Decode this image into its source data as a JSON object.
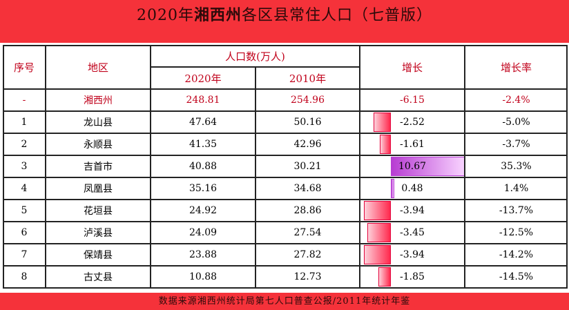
{
  "title": {
    "pre": "2020年",
    "bold": "湘西州",
    "post": "各区县常住人口（七普版）"
  },
  "headers": {
    "index": "序号",
    "region": "地区",
    "population": "人口数(万人)",
    "y2020": "2020年",
    "y2010": "2010年",
    "growth": "增长",
    "rate": "增长率"
  },
  "rows": [
    {
      "index": "-",
      "region": "湘西州",
      "y2020": "248.81",
      "y2010": "254.96",
      "growth": "-6.15",
      "rate": "-2.4%",
      "highlight": true
    },
    {
      "index": "1",
      "region": "龙山县",
      "y2020": "47.64",
      "y2010": "50.16",
      "growth": "-2.52",
      "rate": "-5.0%"
    },
    {
      "index": "2",
      "region": "永顺县",
      "y2020": "41.35",
      "y2010": "42.96",
      "growth": "-1.61",
      "rate": "-3.7%"
    },
    {
      "index": "3",
      "region": "吉首市",
      "y2020": "40.88",
      "y2010": "30.21",
      "growth": "10.67",
      "rate": "35.3%"
    },
    {
      "index": "4",
      "region": "凤凰县",
      "y2020": "35.16",
      "y2010": "34.68",
      "growth": "0.48",
      "rate": "1.4%"
    },
    {
      "index": "5",
      "region": "花垣县",
      "y2020": "24.92",
      "y2010": "28.86",
      "growth": "-3.94",
      "rate": "-13.7%"
    },
    {
      "index": "6",
      "region": "泸溪县",
      "y2020": "24.09",
      "y2010": "27.54",
      "growth": "-3.45",
      "rate": "-12.5%"
    },
    {
      "index": "7",
      "region": "保靖县",
      "y2020": "23.88",
      "y2010": "27.82",
      "growth": "-3.94",
      "rate": "-14.2%"
    },
    {
      "index": "8",
      "region": "古丈县",
      "y2020": "10.88",
      "y2010": "12.73",
      "growth": "-1.85",
      "rate": "-14.5%"
    }
  ],
  "footer": "数据来源湘西州统计局第七人口普查公报/2011年统计年鉴",
  "colors": {
    "banner": "#f5323a",
    "highlight_text": "#c0001a",
    "negative_bar": "#ff2a4e",
    "positive_bar": "#b73dd2"
  }
}
